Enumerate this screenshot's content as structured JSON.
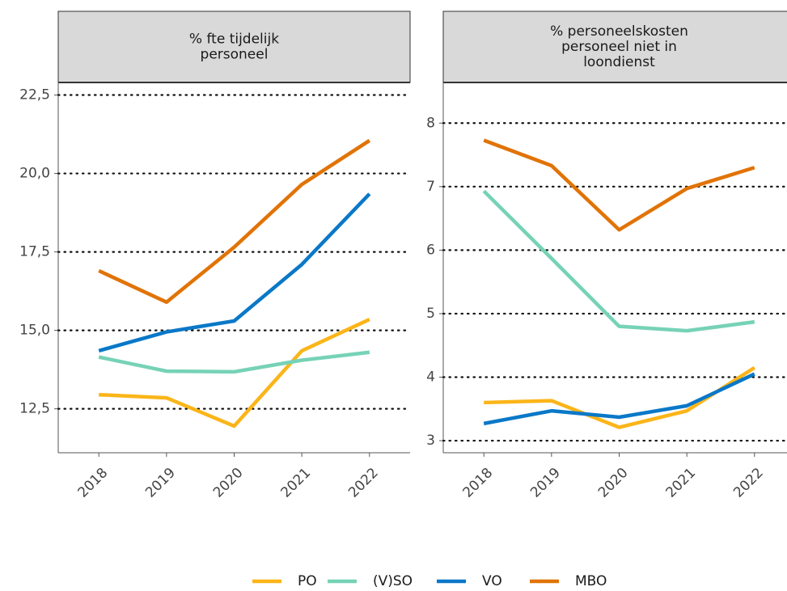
{
  "chart_data": [
    {
      "type": "line",
      "title": [
        "% fte tijdelijk",
        "personeel"
      ],
      "categories": [
        "2018",
        "2019",
        "2020",
        "2021",
        "2022"
      ],
      "series": [
        {
          "name": "PO",
          "color": "#fbb519",
          "values": [
            12.95,
            12.85,
            11.95,
            14.35,
            15.35
          ]
        },
        {
          "name": "(V)SO",
          "color": "#76d2b6",
          "values": [
            14.15,
            13.7,
            13.68,
            14.05,
            14.3
          ]
        },
        {
          "name": "VO",
          "color": "#0a78c8",
          "values": [
            14.35,
            14.95,
            15.3,
            17.1,
            19.35
          ]
        },
        {
          "name": "MBO",
          "color": "#e17306",
          "values": [
            16.9,
            15.9,
            17.65,
            19.65,
            21.05
          ]
        }
      ],
      "ylim": [
        11.1,
        22.9
      ],
      "yticks": [
        {
          "value": 12.5,
          "label": "12,5"
        },
        {
          "value": 15,
          "label": "15,0"
        },
        {
          "value": 17.5,
          "label": "17,5"
        },
        {
          "value": 20,
          "label": "20,0"
        },
        {
          "value": 22.5,
          "label": "22,5"
        }
      ],
      "grid": true
    },
    {
      "type": "line",
      "title": [
        "% personeelskosten",
        "personeel niet in",
        "loondienst"
      ],
      "categories": [
        "2018",
        "2019",
        "2020",
        "2021",
        "2022"
      ],
      "series": [
        {
          "color": "#fbb519",
          "values": [
            3.6,
            3.63,
            3.21,
            3.47,
            4.15
          ]
        },
        {
          "color": "#76d2b6",
          "values": [
            6.93,
            5.87,
            4.8,
            4.73,
            4.87
          ]
        },
        {
          "color": "#0a78c8",
          "values": [
            3.27,
            3.47,
            3.37,
            3.55,
            4.05
          ]
        },
        {
          "color": "#e17306",
          "values": [
            7.73,
            7.33,
            6.32,
            6.97,
            7.3
          ]
        }
      ],
      "ylim": [
        2.81,
        8.64
      ],
      "yticks": [
        3,
        4,
        5,
        6,
        7,
        8
      ],
      "grid": true
    }
  ]
}
